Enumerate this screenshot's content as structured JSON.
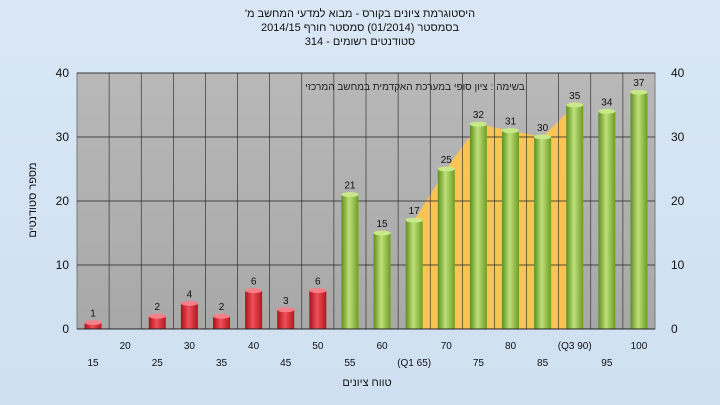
{
  "title": {
    "line1": "היסטוגרמת ציונים בקורס - מבוא למדעי המחשב מ'",
    "line2": "בסמסטר  (01/2014)  סמסטר חורף 2014/15",
    "line3": "סטודנטים רשומים - 314"
  },
  "chart_data": {
    "type": "bar",
    "title": "היסטוגרמת ציונים בקורס - מבוא למדעי המחשב מ'",
    "subtitle": "בסמסטר  (01/2014)  סמסטר חורף 2014/15 | סטודנטים רשומים - 314",
    "annotation": "בשימה : ציון סופי במערכת האקדמית במחשב המרכזי",
    "xlabel": "טווח ציונים",
    "ylabel": "מספר סטודנטים",
    "ylim": [
      0,
      40
    ],
    "yticks": [
      0,
      10,
      20,
      30,
      40
    ],
    "grid": true,
    "categories": [
      "15",
      "20",
      "25",
      "30",
      "35",
      "40",
      "45",
      "50",
      "55",
      "60",
      "65",
      "70",
      "75",
      "80",
      "85",
      "90",
      "95",
      "100"
    ],
    "x_tick_labels": [
      "15",
      "20",
      "25",
      "30",
      "35",
      "40",
      "45",
      "50",
      "55",
      "60",
      "(Q1 65)",
      "70",
      "75",
      "80",
      "85",
      "(Q3 90)",
      "95",
      "100"
    ],
    "values": [
      1,
      0,
      2,
      4,
      2,
      6,
      3,
      6,
      21,
      15,
      17,
      25,
      32,
      31,
      30,
      35,
      34,
      37
    ],
    "value_labels": [
      "1",
      "",
      "2",
      "4",
      "2",
      "6",
      "3",
      "6",
      "21",
      "15",
      "17",
      "25",
      "32",
      "31",
      "30",
      "35",
      "34",
      "37"
    ],
    "fail_threshold_index": 8,
    "colors": {
      "fail": "#d8202a",
      "pass": "#8fc03c",
      "quartile_band": "#ffc84a",
      "plot_bg": "#b2b2b2",
      "page_bg": "#d6e4f3",
      "grid": "#202020"
    }
  }
}
